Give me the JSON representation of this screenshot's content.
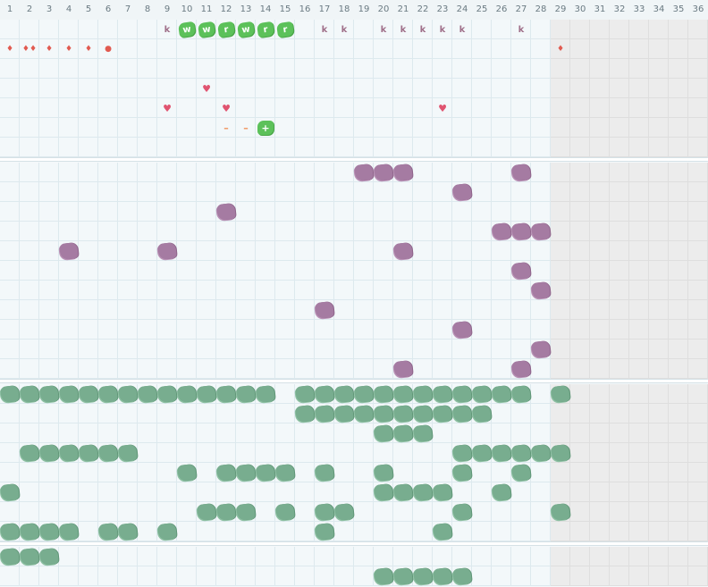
{
  "days": [
    "1",
    "2",
    "3",
    "4",
    "5",
    "6",
    "7",
    "8",
    "9",
    "10",
    "11",
    "12",
    "13",
    "14",
    "15",
    "16",
    "17",
    "18",
    "19",
    "20",
    "21",
    "22",
    "23",
    "24",
    "25",
    "26",
    "27",
    "28",
    "29",
    "30",
    "31",
    "32",
    "33",
    "34",
    "35",
    "36"
  ],
  "today_day": 28,
  "sections": [
    {
      "name": "symbols",
      "rows": 7,
      "marks": [
        {
          "row": 0,
          "day": 9,
          "kind": "k",
          "text": "k"
        },
        {
          "row": 0,
          "day": 10,
          "kind": "green",
          "text": "w"
        },
        {
          "row": 0,
          "day": 11,
          "kind": "green",
          "text": "w"
        },
        {
          "row": 0,
          "day": 12,
          "kind": "green",
          "text": "r"
        },
        {
          "row": 0,
          "day": 13,
          "kind": "green",
          "text": "w"
        },
        {
          "row": 0,
          "day": 14,
          "kind": "green",
          "text": "r"
        },
        {
          "row": 0,
          "day": 15,
          "kind": "green",
          "text": "r"
        },
        {
          "row": 0,
          "day": 17,
          "kind": "k",
          "text": "k"
        },
        {
          "row": 0,
          "day": 18,
          "kind": "k",
          "text": "k"
        },
        {
          "row": 0,
          "day": 20,
          "kind": "k",
          "text": "k"
        },
        {
          "row": 0,
          "day": 21,
          "kind": "k",
          "text": "k"
        },
        {
          "row": 0,
          "day": 22,
          "kind": "k",
          "text": "k"
        },
        {
          "row": 0,
          "day": 23,
          "kind": "k",
          "text": "k"
        },
        {
          "row": 0,
          "day": 24,
          "kind": "k",
          "text": "k"
        },
        {
          "row": 0,
          "day": 27,
          "kind": "k",
          "text": "k"
        },
        {
          "row": 1,
          "day": 1,
          "kind": "drop",
          "text": "♦"
        },
        {
          "row": 1,
          "day": 2,
          "kind": "drop",
          "text": "♦♦"
        },
        {
          "row": 1,
          "day": 3,
          "kind": "drop",
          "text": "♦"
        },
        {
          "row": 1,
          "day": 4,
          "kind": "drop",
          "text": "♦"
        },
        {
          "row": 1,
          "day": 5,
          "kind": "drop",
          "text": "♦"
        },
        {
          "row": 1,
          "day": 6,
          "kind": "drop",
          "text": "●"
        },
        {
          "row": 1,
          "day": 29,
          "kind": "drop",
          "text": "♦"
        },
        {
          "row": 3,
          "day": 11,
          "kind": "heart",
          "text": "♥"
        },
        {
          "row": 4,
          "day": 9,
          "kind": "heart",
          "text": "♥"
        },
        {
          "row": 4,
          "day": 12,
          "kind": "heart",
          "text": "♥"
        },
        {
          "row": 4,
          "day": 23,
          "kind": "heart",
          "text": "♥"
        },
        {
          "row": 5,
          "day": 12,
          "kind": "dash",
          "text": "–"
        },
        {
          "row": 5,
          "day": 13,
          "kind": "dash",
          "text": "–"
        },
        {
          "row": 5,
          "day": 14,
          "kind": "plus",
          "text": "+"
        }
      ]
    },
    {
      "name": "purple-habit",
      "rows": 11,
      "marks": [
        {
          "row": 0,
          "day": 19
        },
        {
          "row": 0,
          "day": 20
        },
        {
          "row": 0,
          "day": 21
        },
        {
          "row": 0,
          "day": 27
        },
        {
          "row": 1,
          "day": 24
        },
        {
          "row": 2,
          "day": 12
        },
        {
          "row": 3,
          "day": 26
        },
        {
          "row": 3,
          "day": 27
        },
        {
          "row": 3,
          "day": 28
        },
        {
          "row": 4,
          "day": 4
        },
        {
          "row": 4,
          "day": 9
        },
        {
          "row": 4,
          "day": 21
        },
        {
          "row": 5,
          "day": 27
        },
        {
          "row": 6,
          "day": 28
        },
        {
          "row": 7,
          "day": 17
        },
        {
          "row": 8,
          "day": 24
        },
        {
          "row": 9,
          "day": 28
        },
        {
          "row": 10,
          "day": 21
        },
        {
          "row": 10,
          "day": 27
        }
      ]
    },
    {
      "name": "green-habit",
      "rows": 8,
      "marks": [
        {
          "row": 0,
          "day": 1
        },
        {
          "row": 0,
          "day": 2
        },
        {
          "row": 0,
          "day": 3
        },
        {
          "row": 0,
          "day": 4
        },
        {
          "row": 0,
          "day": 5
        },
        {
          "row": 0,
          "day": 6
        },
        {
          "row": 0,
          "day": 7
        },
        {
          "row": 0,
          "day": 8
        },
        {
          "row": 0,
          "day": 9
        },
        {
          "row": 0,
          "day": 10
        },
        {
          "row": 0,
          "day": 11
        },
        {
          "row": 0,
          "day": 12
        },
        {
          "row": 0,
          "day": 13
        },
        {
          "row": 0,
          "day": 14
        },
        {
          "row": 0,
          "day": 16
        },
        {
          "row": 0,
          "day": 17
        },
        {
          "row": 0,
          "day": 18
        },
        {
          "row": 0,
          "day": 19
        },
        {
          "row": 0,
          "day": 20
        },
        {
          "row": 0,
          "day": 21
        },
        {
          "row": 0,
          "day": 22
        },
        {
          "row": 0,
          "day": 23
        },
        {
          "row": 0,
          "day": 24
        },
        {
          "row": 0,
          "day": 25
        },
        {
          "row": 0,
          "day": 26
        },
        {
          "row": 0,
          "day": 27
        },
        {
          "row": 0,
          "day": 29
        },
        {
          "row": 1,
          "day": 16
        },
        {
          "row": 1,
          "day": 17
        },
        {
          "row": 1,
          "day": 18
        },
        {
          "row": 1,
          "day": 19
        },
        {
          "row": 1,
          "day": 20
        },
        {
          "row": 1,
          "day": 21
        },
        {
          "row": 1,
          "day": 22
        },
        {
          "row": 1,
          "day": 23
        },
        {
          "row": 1,
          "day": 24
        },
        {
          "row": 1,
          "day": 25
        },
        {
          "row": 2,
          "day": 20
        },
        {
          "row": 2,
          "day": 21
        },
        {
          "row": 2,
          "day": 22
        },
        {
          "row": 3,
          "day": 2
        },
        {
          "row": 3,
          "day": 3
        },
        {
          "row": 3,
          "day": 4
        },
        {
          "row": 3,
          "day": 5
        },
        {
          "row": 3,
          "day": 6
        },
        {
          "row": 3,
          "day": 7
        },
        {
          "row": 3,
          "day": 24
        },
        {
          "row": 3,
          "day": 25
        },
        {
          "row": 3,
          "day": 26
        },
        {
          "row": 3,
          "day": 27
        },
        {
          "row": 3,
          "day": 28
        },
        {
          "row": 3,
          "day": 29
        },
        {
          "row": 4,
          "day": 10
        },
        {
          "row": 4,
          "day": 12
        },
        {
          "row": 4,
          "day": 13
        },
        {
          "row": 4,
          "day": 14
        },
        {
          "row": 4,
          "day": 15
        },
        {
          "row": 4,
          "day": 17
        },
        {
          "row": 4,
          "day": 20
        },
        {
          "row": 4,
          "day": 24
        },
        {
          "row": 4,
          "day": 27
        },
        {
          "row": 5,
          "day": 1
        },
        {
          "row": 5,
          "day": 20
        },
        {
          "row": 5,
          "day": 21
        },
        {
          "row": 5,
          "day": 22
        },
        {
          "row": 5,
          "day": 23
        },
        {
          "row": 5,
          "day": 26
        },
        {
          "row": 6,
          "day": 11
        },
        {
          "row": 6,
          "day": 12
        },
        {
          "row": 6,
          "day": 13
        },
        {
          "row": 6,
          "day": 15
        },
        {
          "row": 6,
          "day": 17
        },
        {
          "row": 6,
          "day": 18
        },
        {
          "row": 6,
          "day": 24
        },
        {
          "row": 6,
          "day": 29
        },
        {
          "row": 7,
          "day": 1
        },
        {
          "row": 7,
          "day": 2
        },
        {
          "row": 7,
          "day": 3
        },
        {
          "row": 7,
          "day": 4
        },
        {
          "row": 7,
          "day": 6
        },
        {
          "row": 7,
          "day": 7
        },
        {
          "row": 7,
          "day": 9
        },
        {
          "row": 7,
          "day": 17
        },
        {
          "row": 7,
          "day": 23
        }
      ]
    },
    {
      "name": "green-habit-2",
      "rows": 2,
      "marks": [
        {
          "row": 0,
          "day": 1
        },
        {
          "row": 0,
          "day": 2
        },
        {
          "row": 0,
          "day": 3
        },
        {
          "row": 1,
          "day": 20
        },
        {
          "row": 1,
          "day": 21
        },
        {
          "row": 1,
          "day": 22
        },
        {
          "row": 1,
          "day": 23
        },
        {
          "row": 1,
          "day": 24
        }
      ]
    }
  ],
  "colors": {
    "purple": "#a57ba2",
    "green_scribble": "#78ad8f",
    "bright_green": "#5cc15a",
    "future_bg": "#ececec",
    "grid_line": "#dde9ee"
  }
}
